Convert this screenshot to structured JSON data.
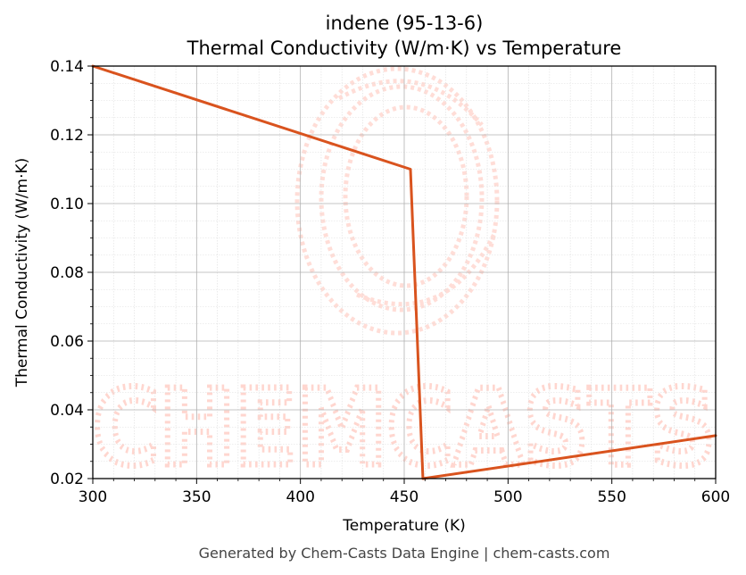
{
  "watermark": {
    "text": "CHEMCASTS"
  },
  "footer": {
    "text": "Generated by Chem-Casts Data Engine | chem-casts.com"
  },
  "colors": {
    "line": "#d9531e",
    "grid_major": "#b0b0b0",
    "grid_minor": "#dddddd",
    "watermark": "#ffb6a8"
  },
  "chart_data": {
    "type": "line",
    "title": "indene (95-13-6)",
    "subtitle": "Thermal Conductivity (W/m·K) vs Temperature",
    "xlabel": "Temperature (K)",
    "ylabel": "Thermal Conductivity (W/m·K)",
    "xlim": [
      300,
      600
    ],
    "ylim": [
      0.02,
      0.14
    ],
    "xticks": [
      300,
      350,
      400,
      450,
      500,
      550,
      600
    ],
    "xtick_labels": [
      "300",
      "350",
      "400",
      "450",
      "500",
      "550",
      "600"
    ],
    "yticks": [
      0.02,
      0.04,
      0.06,
      0.08,
      0.1,
      0.12,
      0.14
    ],
    "ytick_labels": [
      "0.02",
      "0.04",
      "0.06",
      "0.08",
      "0.10",
      "0.12",
      "0.14"
    ],
    "grid": true,
    "minor_grid": true,
    "series": [
      {
        "color": "#d9531e",
        "x": [
          300,
          453,
          459,
          600
        ],
        "y": [
          0.14,
          0.11,
          0.02,
          0.0325
        ]
      }
    ]
  }
}
